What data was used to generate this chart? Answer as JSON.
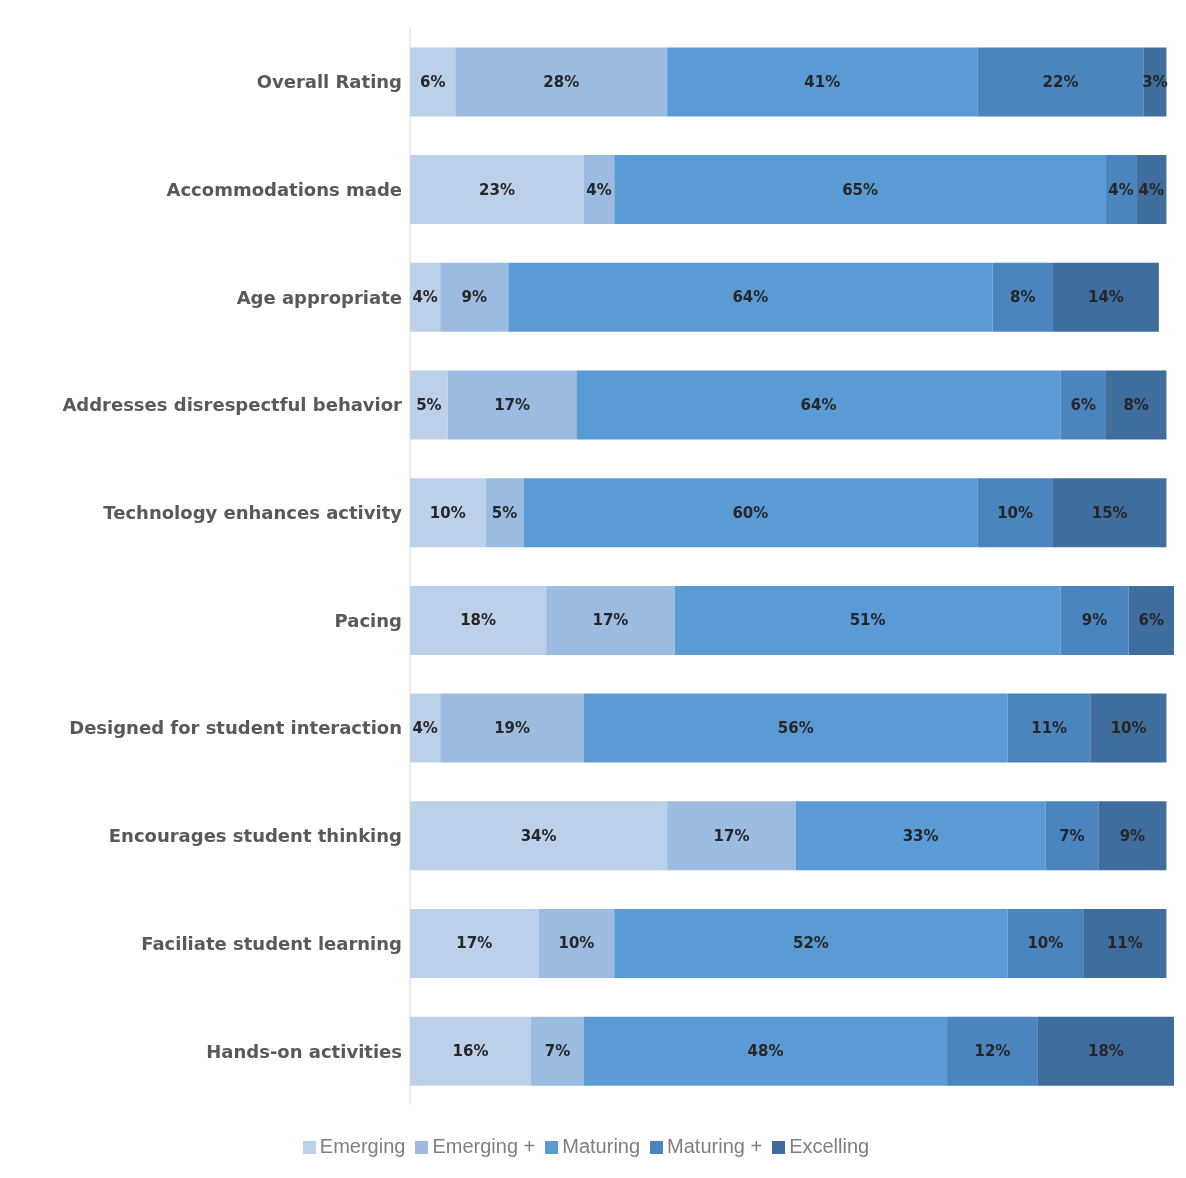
{
  "chart_data": {
    "type": "bar",
    "orientation": "horizontal",
    "stacked": true,
    "legend": "bottom",
    "tick_labels": "y",
    "grid": false,
    "categories": [
      "Overall Rating",
      "Accommodations made",
      "Age appropriate",
      "Addresses disrespectful behavior",
      "Technology enhances activity",
      "Pacing",
      "Designed for student interaction",
      "Encourages student thinking",
      "Faciliate student learning",
      "Hands-on activities"
    ],
    "series": [
      {
        "name": "Emerging",
        "color": "#bdd0ea",
        "values": [
          6,
          23,
          4,
          5,
          10,
          18,
          4,
          34,
          17,
          16
        ],
        "value_labels": [
          "6%",
          "23%",
          "4%",
          "5%",
          "10%",
          "18%",
          "4%",
          "34%",
          "17%",
          "16%"
        ]
      },
      {
        "name": "Emerging +",
        "color": "#9bbbe1",
        "values": [
          28,
          4,
          9,
          17,
          5,
          17,
          19,
          17,
          10,
          7
        ],
        "value_labels": [
          "28%",
          "4%",
          "9%",
          "17%",
          "5%",
          "17%",
          "19%",
          "17%",
          "10%",
          "7%"
        ]
      },
      {
        "name": "Maturing",
        "color": "#5b9bd5",
        "values": [
          41,
          65,
          64,
          64,
          60,
          51,
          56,
          33,
          52,
          48
        ],
        "value_labels": [
          "41%",
          "65%",
          "64%",
          "64%",
          "60%",
          "51%",
          "56%",
          "33%",
          "52%",
          "48%"
        ]
      },
      {
        "name": "Maturing +",
        "color": "#4a85bf",
        "values": [
          22,
          4,
          8,
          6,
          10,
          9,
          11,
          7,
          10,
          12
        ],
        "value_labels": [
          "22%",
          "4%",
          "8%",
          "6%",
          "10%",
          "9%",
          "11%",
          "7%",
          "10%",
          "12%"
        ]
      },
      {
        "name": "Excelling",
        "color": "#3f6e9e",
        "values": [
          3,
          4,
          14,
          8,
          15,
          6,
          10,
          9,
          11,
          18
        ],
        "value_labels": [
          "3%",
          "4%",
          "14%",
          "8%",
          "15%",
          "6%",
          "10%",
          "9%",
          "11%",
          "18%"
        ]
      }
    ]
  }
}
